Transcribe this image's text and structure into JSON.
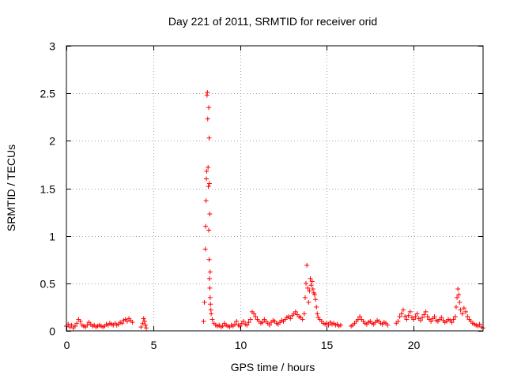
{
  "chart_data": {
    "type": "scatter",
    "title": "Day 221 of 2011, SRMTID for receiver orid",
    "xlabel": "GPS time / hours",
    "ylabel": "SRMTID / TECUs",
    "xlim": [
      0,
      24
    ],
    "ylim": [
      0,
      3
    ],
    "xticks": [
      0,
      5,
      10,
      15,
      20
    ],
    "xtick_labels": [
      "0",
      "5",
      "10",
      "15",
      "20"
    ],
    "yticks": [
      0,
      0.5,
      1,
      1.5,
      2,
      2.5,
      3
    ],
    "ytick_labels": [
      "0",
      "0.5",
      "1",
      "1.5",
      "2",
      "2.5",
      "3"
    ],
    "grid": true,
    "legend": "none",
    "marker": "plus",
    "color": "#ff0000",
    "series": [
      {
        "name": "SRMTID",
        "points": [
          [
            0.0,
            0.05
          ],
          [
            0.1,
            0.07
          ],
          [
            0.2,
            0.04
          ],
          [
            0.3,
            0.06
          ],
          [
            0.4,
            0.03
          ],
          [
            0.5,
            0.05
          ],
          [
            0.6,
            0.08
          ],
          [
            0.7,
            0.12
          ],
          [
            0.8,
            0.1
          ],
          [
            0.9,
            0.06
          ],
          [
            1.0,
            0.05
          ],
          [
            1.1,
            0.04
          ],
          [
            1.2,
            0.06
          ],
          [
            1.3,
            0.09
          ],
          [
            1.4,
            0.07
          ],
          [
            1.5,
            0.05
          ],
          [
            1.6,
            0.06
          ],
          [
            1.7,
            0.04
          ],
          [
            1.8,
            0.05
          ],
          [
            1.9,
            0.06
          ],
          [
            2.0,
            0.05
          ],
          [
            2.1,
            0.04
          ],
          [
            2.2,
            0.05
          ],
          [
            2.3,
            0.07
          ],
          [
            2.4,
            0.06
          ],
          [
            2.5,
            0.08
          ],
          [
            2.6,
            0.07
          ],
          [
            2.7,
            0.06
          ],
          [
            2.8,
            0.08
          ],
          [
            2.9,
            0.06
          ],
          [
            3.0,
            0.07
          ],
          [
            3.1,
            0.09
          ],
          [
            3.2,
            0.08
          ],
          [
            3.3,
            0.11
          ],
          [
            3.4,
            0.12
          ],
          [
            3.5,
            0.1
          ],
          [
            3.6,
            0.13
          ],
          [
            3.7,
            0.11
          ],
          [
            3.8,
            0.09
          ],
          [
            4.3,
            0.04
          ],
          [
            4.4,
            0.08
          ],
          [
            4.45,
            0.13
          ],
          [
            4.5,
            0.1
          ],
          [
            4.55,
            0.06
          ],
          [
            4.6,
            0.03
          ],
          [
            7.9,
            0.1
          ],
          [
            7.95,
            0.3
          ],
          [
            8.0,
            0.86
          ],
          [
            8.02,
            1.1
          ],
          [
            8.04,
            1.37
          ],
          [
            8.06,
            1.6
          ],
          [
            8.08,
            1.68
          ],
          [
            8.1,
            2.48
          ],
          [
            8.12,
            2.51
          ],
          [
            8.14,
            2.23
          ],
          [
            8.16,
            1.72
          ],
          [
            8.18,
            1.52
          ],
          [
            8.2,
            1.06
          ],
          [
            8.22,
            0.75
          ],
          [
            8.24,
            0.55
          ],
          [
            8.26,
            0.45
          ],
          [
            8.28,
            0.35
          ],
          [
            8.3,
            0.28
          ],
          [
            8.32,
            0.22
          ],
          [
            8.34,
            0.18
          ],
          [
            8.2,
            2.35
          ],
          [
            8.22,
            2.03
          ],
          [
            8.24,
            1.55
          ],
          [
            8.26,
            1.23
          ],
          [
            8.28,
            0.62
          ],
          [
            8.4,
            0.12
          ],
          [
            8.5,
            0.08
          ],
          [
            8.6,
            0.06
          ],
          [
            8.7,
            0.05
          ],
          [
            8.8,
            0.06
          ],
          [
            8.9,
            0.04
          ],
          [
            9.0,
            0.05
          ],
          [
            9.1,
            0.08
          ],
          [
            9.2,
            0.06
          ],
          [
            9.3,
            0.05
          ],
          [
            9.4,
            0.04
          ],
          [
            9.5,
            0.06
          ],
          [
            9.6,
            0.05
          ],
          [
            9.7,
            0.07
          ],
          [
            9.8,
            0.1
          ],
          [
            9.9,
            0.06
          ],
          [
            10.0,
            0.05
          ],
          [
            10.1,
            0.08
          ],
          [
            10.2,
            0.1
          ],
          [
            10.3,
            0.07
          ],
          [
            10.4,
            0.06
          ],
          [
            10.5,
            0.09
          ],
          [
            10.6,
            0.12
          ],
          [
            10.7,
            0.2
          ],
          [
            10.8,
            0.18
          ],
          [
            10.9,
            0.15
          ],
          [
            11.0,
            0.12
          ],
          [
            11.1,
            0.1
          ],
          [
            11.2,
            0.08
          ],
          [
            11.3,
            0.09
          ],
          [
            11.4,
            0.12
          ],
          [
            11.5,
            0.1
          ],
          [
            11.6,
            0.08
          ],
          [
            11.7,
            0.06
          ],
          [
            11.8,
            0.09
          ],
          [
            11.9,
            0.11
          ],
          [
            12.0,
            0.1
          ],
          [
            12.1,
            0.08
          ],
          [
            12.2,
            0.07
          ],
          [
            12.3,
            0.09
          ],
          [
            12.4,
            0.11
          ],
          [
            12.5,
            0.1
          ],
          [
            12.6,
            0.12
          ],
          [
            12.7,
            0.14
          ],
          [
            12.8,
            0.15
          ],
          [
            12.9,
            0.13
          ],
          [
            13.0,
            0.16
          ],
          [
            13.1,
            0.18
          ],
          [
            13.2,
            0.2
          ],
          [
            13.3,
            0.17
          ],
          [
            13.4,
            0.15
          ],
          [
            13.5,
            0.14
          ],
          [
            13.6,
            0.12
          ],
          [
            13.7,
            0.18
          ],
          [
            13.75,
            0.35
          ],
          [
            13.8,
            0.5
          ],
          [
            13.85,
            0.69
          ],
          [
            13.9,
            0.45
          ],
          [
            13.95,
            0.3
          ],
          [
            14.0,
            0.42
          ],
          [
            14.05,
            0.55
          ],
          [
            14.1,
            0.48
          ],
          [
            14.15,
            0.52
          ],
          [
            14.2,
            0.44
          ],
          [
            14.25,
            0.4
          ],
          [
            14.3,
            0.38
          ],
          [
            14.35,
            0.33
          ],
          [
            14.4,
            0.25
          ],
          [
            14.45,
            0.18
          ],
          [
            14.5,
            0.14
          ],
          [
            14.6,
            0.12
          ],
          [
            14.7,
            0.1
          ],
          [
            14.8,
            0.08
          ],
          [
            14.9,
            0.07
          ],
          [
            15.0,
            0.08
          ],
          [
            15.1,
            0.06
          ],
          [
            15.2,
            0.09
          ],
          [
            15.3,
            0.07
          ],
          [
            15.4,
            0.08
          ],
          [
            15.5,
            0.06
          ],
          [
            15.6,
            0.07
          ],
          [
            15.7,
            0.05
          ],
          [
            15.8,
            0.06
          ],
          [
            16.4,
            0.05
          ],
          [
            16.5,
            0.06
          ],
          [
            16.6,
            0.08
          ],
          [
            16.7,
            0.1
          ],
          [
            16.8,
            0.12
          ],
          [
            16.9,
            0.15
          ],
          [
            17.0,
            0.12
          ],
          [
            17.1,
            0.1
          ],
          [
            17.2,
            0.08
          ],
          [
            17.3,
            0.07
          ],
          [
            17.4,
            0.09
          ],
          [
            17.5,
            0.1
          ],
          [
            17.6,
            0.08
          ],
          [
            17.7,
            0.07
          ],
          [
            17.8,
            0.09
          ],
          [
            17.9,
            0.11
          ],
          [
            18.0,
            0.1
          ],
          [
            18.1,
            0.08
          ],
          [
            18.2,
            0.07
          ],
          [
            18.3,
            0.09
          ],
          [
            18.4,
            0.08
          ],
          [
            18.5,
            0.06
          ],
          [
            19.0,
            0.08
          ],
          [
            19.1,
            0.1
          ],
          [
            19.2,
            0.15
          ],
          [
            19.3,
            0.18
          ],
          [
            19.4,
            0.22
          ],
          [
            19.5,
            0.15
          ],
          [
            19.6,
            0.12
          ],
          [
            19.7,
            0.16
          ],
          [
            19.8,
            0.2
          ],
          [
            19.9,
            0.14
          ],
          [
            20.0,
            0.12
          ],
          [
            20.1,
            0.15
          ],
          [
            20.2,
            0.18
          ],
          [
            20.3,
            0.13
          ],
          [
            20.4,
            0.11
          ],
          [
            20.5,
            0.14
          ],
          [
            20.6,
            0.17
          ],
          [
            20.7,
            0.2
          ],
          [
            20.8,
            0.15
          ],
          [
            20.9,
            0.12
          ],
          [
            21.0,
            0.1
          ],
          [
            21.1,
            0.13
          ],
          [
            21.2,
            0.15
          ],
          [
            21.3,
            0.11
          ],
          [
            21.4,
            0.1
          ],
          [
            21.5,
            0.12
          ],
          [
            21.6,
            0.14
          ],
          [
            21.7,
            0.11
          ],
          [
            21.8,
            0.09
          ],
          [
            21.9,
            0.1
          ],
          [
            22.0,
            0.12
          ],
          [
            22.1,
            0.11
          ],
          [
            22.2,
            0.09
          ],
          [
            22.3,
            0.12
          ],
          [
            22.4,
            0.15
          ],
          [
            22.45,
            0.25
          ],
          [
            22.5,
            0.35
          ],
          [
            22.55,
            0.44
          ],
          [
            22.6,
            0.38
          ],
          [
            22.65,
            0.3
          ],
          [
            22.7,
            0.22
          ],
          [
            22.8,
            0.18
          ],
          [
            22.9,
            0.24
          ],
          [
            23.0,
            0.2
          ],
          [
            23.1,
            0.15
          ],
          [
            23.2,
            0.12
          ],
          [
            23.3,
            0.1
          ],
          [
            23.4,
            0.08
          ],
          [
            23.5,
            0.07
          ],
          [
            23.6,
            0.06
          ],
          [
            23.7,
            0.05
          ],
          [
            23.8,
            0.07
          ],
          [
            23.9,
            0.04
          ],
          [
            24.0,
            0.03
          ]
        ]
      }
    ]
  }
}
